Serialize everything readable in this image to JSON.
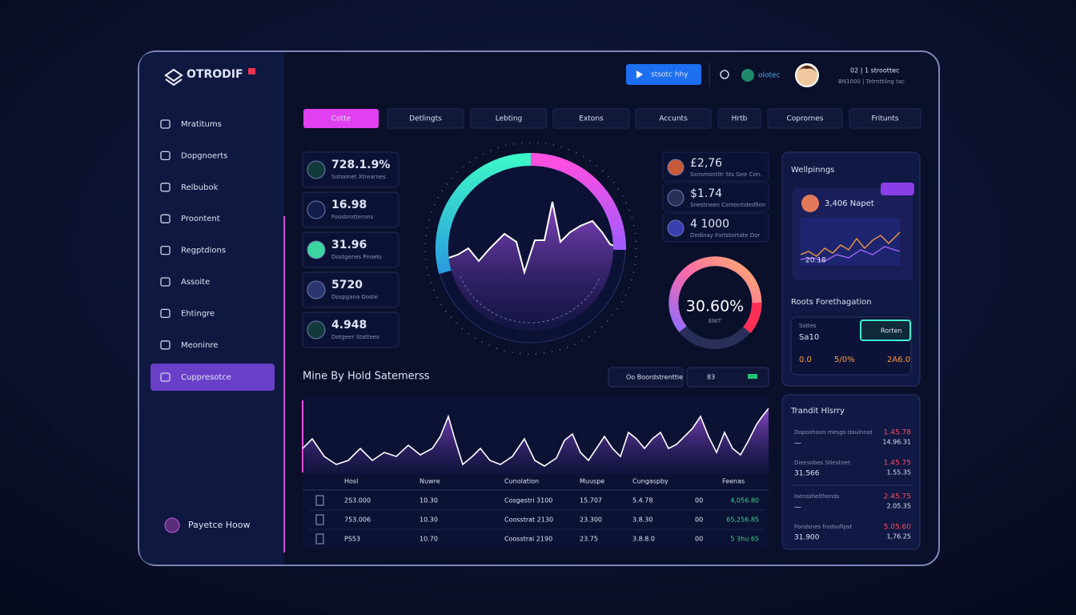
{
  "sidebar": {
    "logo": "OTRODIF",
    "nav": [
      "Mratitums",
      "Dopgnoerts",
      "Relbubok",
      "Proontent",
      "Regptdions",
      "Assoite",
      "Ehtingre",
      "Meoninre",
      "Cuppresotce"
    ],
    "footer": "Payetce Hoow"
  },
  "topbar": {
    "button": "stsotc hhy",
    "status": "olotec",
    "stat_top": "02 | 1 stroottec",
    "stat_bottom": "BN1000 | Tetmttilng tac"
  },
  "tabs": [
    "Cotte",
    "Detlingts",
    "Lebting",
    "Extons",
    "Accunts",
    "Hrtb",
    "Coprornes",
    "Fritunts"
  ],
  "left_stats": [
    {
      "value": "728.1.9%",
      "label": "Sotoonet Xtrearnes"
    },
    {
      "value": "16.98",
      "label": "Foosbrotterons"
    },
    {
      "value": "31.96",
      "label": "Dostgenes Pnoets"
    },
    {
      "value": "5720",
      "label": "Dospgana Doste"
    },
    {
      "value": "4.948",
      "label": "Dotgeer Stattees"
    }
  ],
  "right_stats": [
    {
      "value": "£2,76",
      "label": "Ssnsmontitr Sts Gee Con."
    },
    {
      "value": "$1.74",
      "label": "Snestneen Csmontidedfion"
    },
    {
      "value": "4 1000",
      "label": "Dedinay Fortstortate Dor"
    }
  ],
  "gauge": {
    "value": "30.60%",
    "label": "ENIT"
  },
  "chart_panel": {
    "title": "Mine By Hold Satemerss",
    "filter": "Oo Boordstrenttie",
    "range": "83"
  },
  "table": {
    "columns": [
      "Hosl",
      "Nuwre",
      "Cunolation",
      "Muuspe",
      "Cungaspby",
      "Feenas"
    ],
    "rows": [
      [
        "2S3.000",
        "10.30",
        "Cosgestri 3100",
        "15.707",
        "5.4.78",
        "00",
        "4,056.80"
      ],
      [
        "753.006",
        "10.30",
        "Coosstrat 2130",
        "23.300",
        "3.8.30",
        "00",
        "65,256.85"
      ],
      [
        "PS53",
        "10.70",
        "Coosstrai 2190",
        "23.75",
        "3.8.8.0",
        "00",
        "5 3hu 65"
      ]
    ]
  },
  "watchlist": {
    "title": "Wellpinngs",
    "card_title": "3,406 Napet",
    "card_value": "20.18"
  },
  "forecast": {
    "title": "Roots Forethagation",
    "label": "Ssttes",
    "value": "Sa10",
    "button": "Rorten",
    "metrics": [
      "0.0",
      "5/0%",
      "2A6.0"
    ]
  },
  "history": {
    "title": "Trandit Hlsrry",
    "rows": [
      {
        "label": "Doposhoon mesgs dauinnat",
        "value": "—",
        "change": "1.45.78",
        "total": "14.96.31"
      },
      {
        "label": "Dieesobes Stlestnet",
        "value": "31.566",
        "change": "1.45.75",
        "total": "1.55.35"
      },
      {
        "label": "Isensshelthonds",
        "value": "—",
        "change": "2.45.75",
        "total": "2.05.35"
      },
      {
        "label": "Fondsnes frodsofipst",
        "value": "31.900",
        "change": "5.05.60",
        "total": "1,76.25"
      }
    ]
  }
}
